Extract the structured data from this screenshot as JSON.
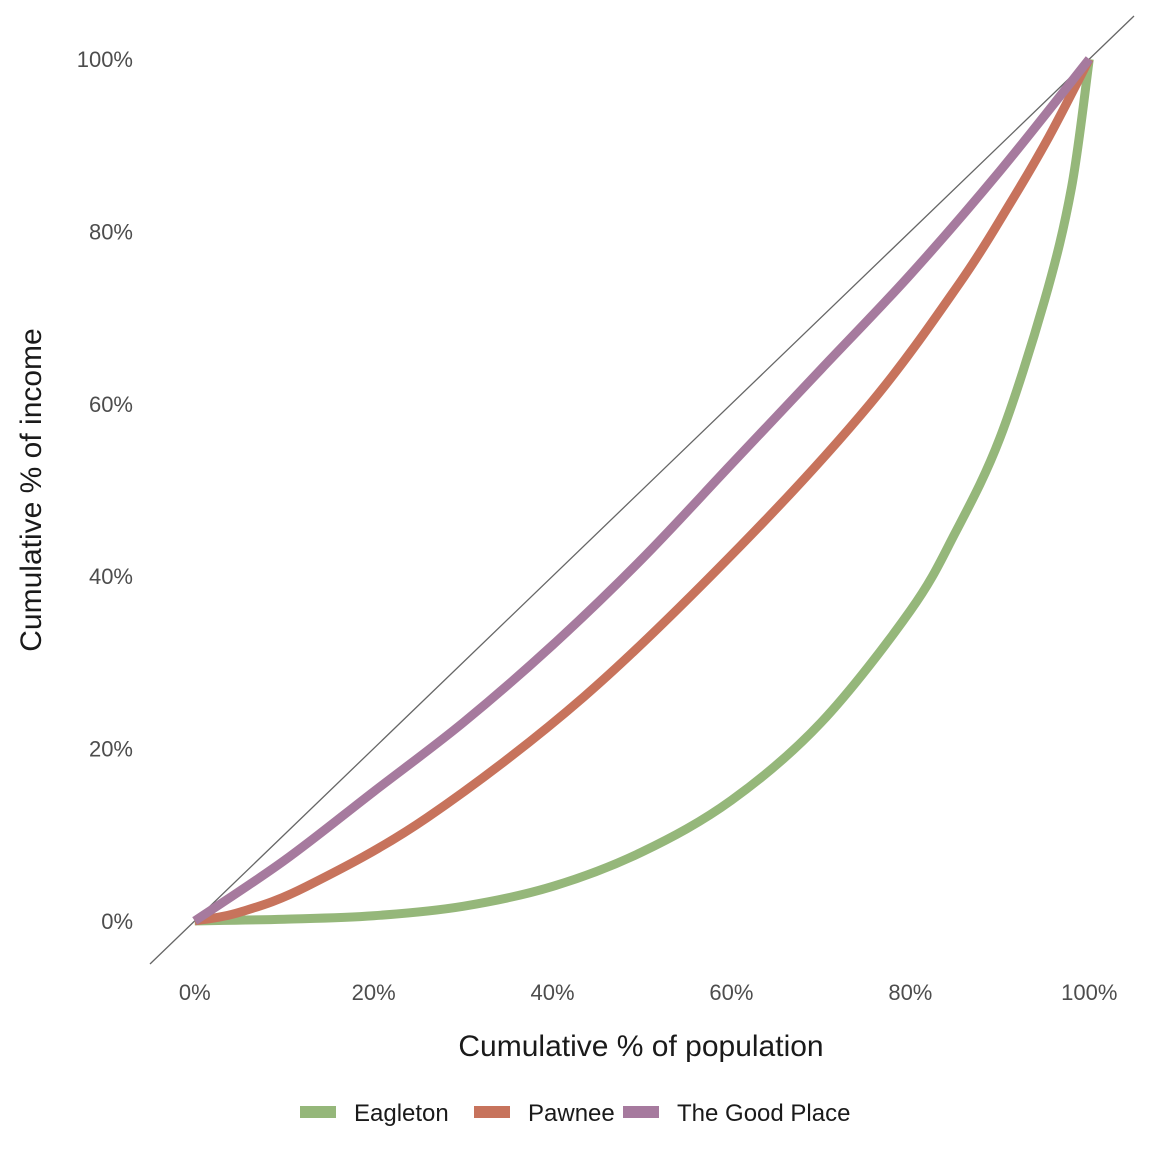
{
  "chart_data": {
    "type": "line",
    "title": "",
    "xlabel": "Cumulative % of population",
    "ylabel": "Cumulative % of income",
    "xlim": [
      -0.05,
      1.05
    ],
    "ylim": [
      -0.05,
      1.05
    ],
    "x_ticks": [
      0,
      0.2,
      0.4,
      0.6,
      0.8,
      1.0
    ],
    "x_tick_labels": [
      "0%",
      "20%",
      "40%",
      "60%",
      "80%",
      "100%"
    ],
    "y_ticks": [
      0,
      0.2,
      0.4,
      0.6,
      0.8,
      1.0
    ],
    "y_tick_labels": [
      "0%",
      "20%",
      "40%",
      "60%",
      "80%",
      "100%"
    ],
    "grid": false,
    "legend": "bottom",
    "reference_line": {
      "from": [
        -0.05,
        -0.05
      ],
      "to": [
        1.05,
        1.05
      ],
      "color": "#666666"
    },
    "series": [
      {
        "name": "Eagleton",
        "color": "#95B77A",
        "points": [
          [
            0,
            0
          ],
          [
            0.1,
            0.002
          ],
          [
            0.2,
            0.006
          ],
          [
            0.3,
            0.017
          ],
          [
            0.4,
            0.04
          ],
          [
            0.5,
            0.08
          ],
          [
            0.6,
            0.14
          ],
          [
            0.7,
            0.23
          ],
          [
            0.8,
            0.36
          ],
          [
            0.85,
            0.45
          ],
          [
            0.9,
            0.56
          ],
          [
            0.95,
            0.72
          ],
          [
            0.98,
            0.85
          ],
          [
            1.0,
            1.0
          ]
        ]
      },
      {
        "name": "Pawnee",
        "color": "#C7735C",
        "points": [
          [
            0,
            0
          ],
          [
            0.05,
            0.01
          ],
          [
            0.125,
            0.04
          ],
          [
            0.26,
            0.12
          ],
          [
            0.435,
            0.26
          ],
          [
            0.61,
            0.435
          ],
          [
            0.755,
            0.6
          ],
          [
            0.855,
            0.74
          ],
          [
            0.91,
            0.83
          ],
          [
            0.955,
            0.91
          ],
          [
            1.0,
            1.0
          ]
        ]
      },
      {
        "name": "The Good Place",
        "color": "#A67A9E",
        "points": [
          [
            0,
            0
          ],
          [
            0.1,
            0.07
          ],
          [
            0.2,
            0.15
          ],
          [
            0.3,
            0.23
          ],
          [
            0.4,
            0.32
          ],
          [
            0.5,
            0.42
          ],
          [
            0.6,
            0.53
          ],
          [
            0.7,
            0.64
          ],
          [
            0.8,
            0.75
          ],
          [
            0.9,
            0.87
          ],
          [
            1.0,
            1.0
          ]
        ]
      }
    ]
  }
}
